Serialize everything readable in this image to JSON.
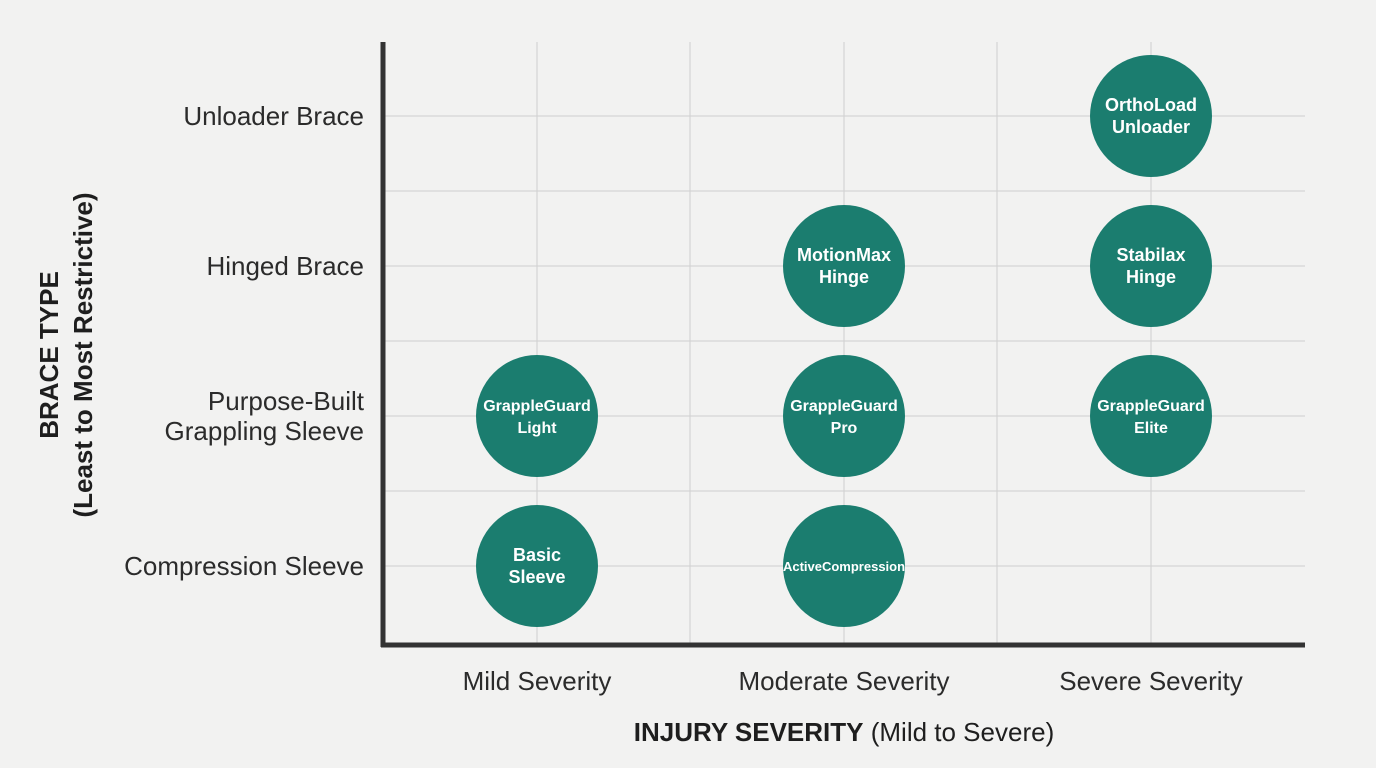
{
  "chart_data": {
    "type": "scatter",
    "colors": {
      "bubble": "#1b7d6f",
      "grid": "#cfcfcf",
      "axis": "#333333"
    },
    "x_axis": {
      "title_bold": "INJURY SEVERITY",
      "title_rest": " (Mild to Severe)",
      "categories": [
        "Mild Severity",
        "Moderate Severity",
        "Severe Severity"
      ]
    },
    "y_axis": {
      "title_line1": "BRACE TYPE",
      "title_line2": "(Least to Most Restrictive)",
      "categories": [
        {
          "lines": [
            "Compression Sleeve"
          ]
        },
        {
          "lines": [
            "Purpose-Built",
            "Grappling Sleeve"
          ]
        },
        {
          "lines": [
            "Hinged Brace"
          ]
        },
        {
          "lines": [
            "Unloader Brace"
          ]
        }
      ]
    },
    "points": [
      {
        "x": "Severe Severity",
        "y": "Unloader Brace",
        "label": [
          "OrthoLoad",
          "Unloader"
        ]
      },
      {
        "x": "Moderate Severity",
        "y": "Hinged Brace",
        "label": [
          "MotionMax",
          "Hinge"
        ]
      },
      {
        "x": "Severe Severity",
        "y": "Hinged Brace",
        "label": [
          "Stabilax",
          "Hinge"
        ]
      },
      {
        "x": "Mild Severity",
        "y": "Purpose-Built Grappling Sleeve",
        "label": [
          "GrappleGuard",
          "Light"
        ]
      },
      {
        "x": "Moderate Severity",
        "y": "Purpose-Built Grappling Sleeve",
        "label": [
          "GrappleGuard",
          "Pro"
        ]
      },
      {
        "x": "Severe Severity",
        "y": "Purpose-Built Grappling Sleeve",
        "label": [
          "GrappleGuard",
          "Elite"
        ]
      },
      {
        "x": "Mild Severity",
        "y": "Compression Sleeve",
        "label": [
          "Basic",
          "Sleeve"
        ]
      },
      {
        "x": "Moderate Severity",
        "y": "Compression Sleeve",
        "label": [
          "ActiveCompression"
        ]
      }
    ]
  }
}
